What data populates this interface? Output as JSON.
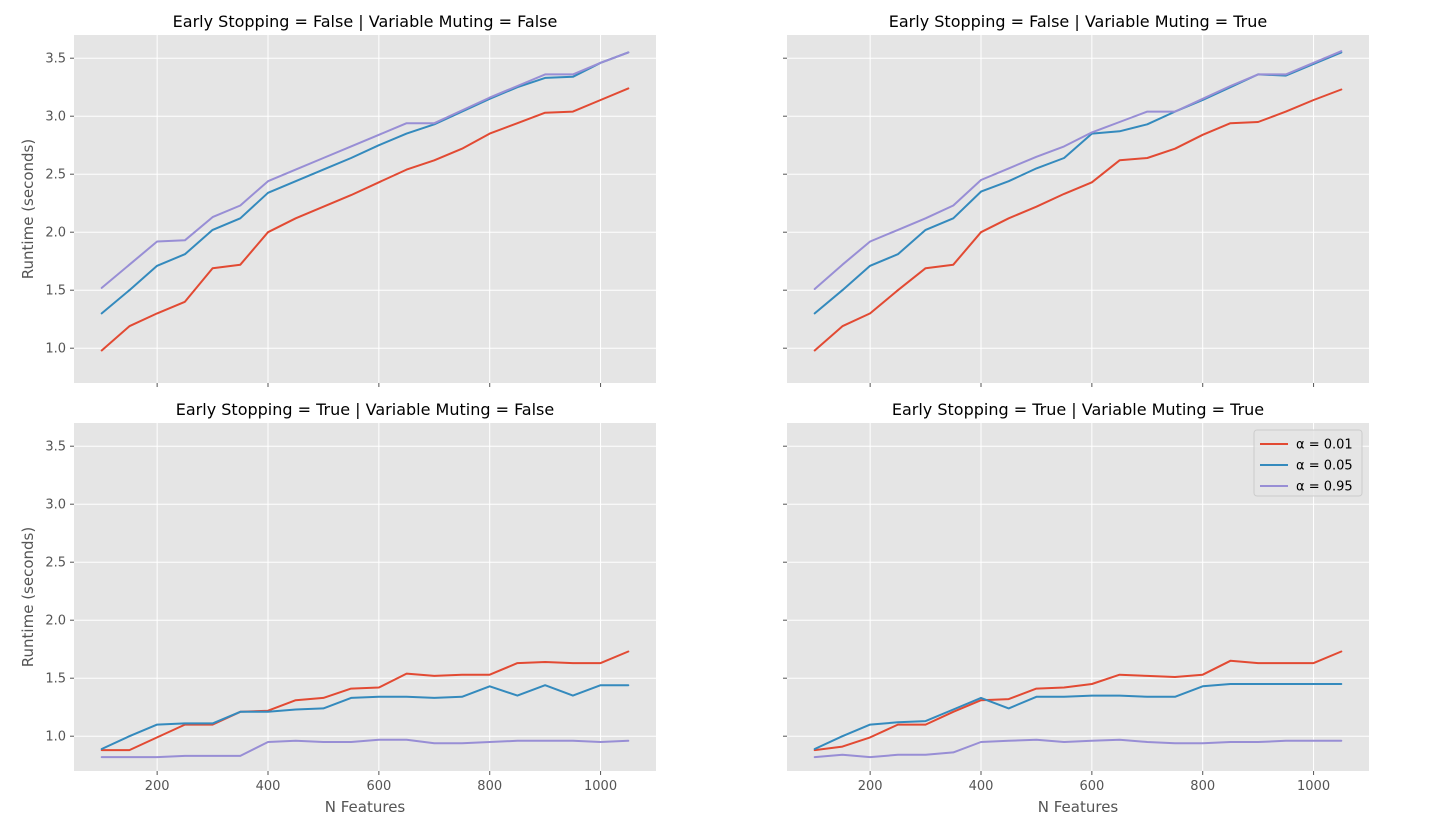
{
  "chart_data": {
    "type": "line",
    "layout": "2x2 facet grid, shared x and y axes",
    "xlabel": "N Features",
    "ylabel": "Runtime (seconds)",
    "xlim": [
      50,
      1100
    ],
    "ylim": [
      0.7,
      3.7
    ],
    "xticks": [
      200,
      400,
      600,
      800,
      1000
    ],
    "yticks": [
      1.0,
      1.5,
      2.0,
      2.5,
      3.0,
      3.5
    ],
    "ytick_labels": [
      "1.0",
      "1.5",
      "2.0",
      "2.5",
      "3.0",
      "3.5"
    ],
    "grid": true,
    "background": "#e5e5e5",
    "legend": {
      "placement": "top-right of bottom-right panel",
      "entries": [
        {
          "label": "α = 0.01",
          "color": "#e24a33"
        },
        {
          "label": "α = 0.05",
          "color": "#348abd"
        },
        {
          "label": "α = 0.95",
          "color": "#988ed5"
        }
      ]
    },
    "x": [
      100,
      150,
      200,
      250,
      300,
      350,
      400,
      450,
      500,
      550,
      600,
      650,
      700,
      750,
      800,
      850,
      900,
      950,
      1000,
      1050
    ],
    "panels": [
      {
        "title": "Early Stopping = False | Variable Muting = False",
        "series": [
          {
            "name": "α = 0.01",
            "values": [
              0.98,
              1.19,
              1.3,
              1.4,
              1.69,
              1.72,
              2.0,
              2.12,
              2.22,
              2.32,
              2.43,
              2.54,
              2.62,
              2.72,
              2.85,
              2.94,
              3.03,
              3.04,
              3.14,
              3.24
            ]
          },
          {
            "name": "α = 0.05",
            "values": [
              1.3,
              1.5,
              1.71,
              1.81,
              2.02,
              2.12,
              2.34,
              2.44,
              2.54,
              2.64,
              2.75,
              2.85,
              2.93,
              3.04,
              3.15,
              3.25,
              3.33,
              3.34,
              3.46,
              3.55
            ]
          },
          {
            "name": "α = 0.95",
            "values": [
              1.52,
              1.72,
              1.92,
              1.93,
              2.13,
              2.23,
              2.44,
              2.54,
              2.64,
              2.74,
              2.84,
              2.94,
              2.94,
              3.05,
              3.16,
              3.26,
              3.36,
              3.36,
              3.46,
              3.55
            ]
          }
        ]
      },
      {
        "title": "Early Stopping = False | Variable Muting = True",
        "series": [
          {
            "name": "α = 0.01",
            "values": [
              0.98,
              1.19,
              1.3,
              1.5,
              1.69,
              1.72,
              2.0,
              2.12,
              2.22,
              2.33,
              2.43,
              2.62,
              2.64,
              2.72,
              2.84,
              2.94,
              2.95,
              3.04,
              3.14,
              3.23
            ]
          },
          {
            "name": "α = 0.05",
            "values": [
              1.3,
              1.5,
              1.71,
              1.81,
              2.02,
              2.12,
              2.35,
              2.44,
              2.55,
              2.64,
              2.85,
              2.87,
              2.93,
              3.04,
              3.14,
              3.25,
              3.36,
              3.35,
              3.45,
              3.55
            ]
          },
          {
            "name": "α = 0.95",
            "values": [
              1.51,
              1.72,
              1.92,
              2.02,
              2.12,
              2.23,
              2.45,
              2.55,
              2.65,
              2.74,
              2.86,
              2.95,
              3.04,
              3.04,
              3.15,
              3.26,
              3.36,
              3.36,
              3.46,
              3.56
            ]
          }
        ]
      },
      {
        "title": "Early Stopping = True | Variable Muting = False",
        "series": [
          {
            "name": "α = 0.01",
            "values": [
              0.88,
              0.88,
              0.99,
              1.1,
              1.1,
              1.21,
              1.22,
              1.31,
              1.33,
              1.41,
              1.42,
              1.54,
              1.52,
              1.53,
              1.53,
              1.63,
              1.64,
              1.63,
              1.63,
              1.73
            ]
          },
          {
            "name": "α = 0.05",
            "values": [
              0.89,
              1.0,
              1.1,
              1.11,
              1.11,
              1.21,
              1.21,
              1.23,
              1.24,
              1.33,
              1.34,
              1.34,
              1.33,
              1.34,
              1.43,
              1.35,
              1.44,
              1.35,
              1.44,
              1.44
            ]
          },
          {
            "name": "α = 0.95",
            "values": [
              0.82,
              0.82,
              0.82,
              0.83,
              0.83,
              0.83,
              0.95,
              0.96,
              0.95,
              0.95,
              0.97,
              0.97,
              0.94,
              0.94,
              0.95,
              0.96,
              0.96,
              0.96,
              0.95,
              0.96
            ]
          }
        ]
      },
      {
        "title": "Early Stopping = True | Variable Muting = True",
        "series": [
          {
            "name": "α = 0.01",
            "values": [
              0.88,
              0.91,
              0.99,
              1.1,
              1.1,
              1.21,
              1.31,
              1.32,
              1.41,
              1.42,
              1.45,
              1.53,
              1.52,
              1.51,
              1.53,
              1.65,
              1.63,
              1.63,
              1.63,
              1.73
            ]
          },
          {
            "name": "α = 0.05",
            "values": [
              0.89,
              1.0,
              1.1,
              1.12,
              1.13,
              1.23,
              1.33,
              1.24,
              1.34,
              1.34,
              1.35,
              1.35,
              1.34,
              1.34,
              1.43,
              1.45,
              1.45,
              1.45,
              1.45,
              1.45
            ]
          },
          {
            "name": "α = 0.95",
            "values": [
              0.82,
              0.84,
              0.82,
              0.84,
              0.84,
              0.86,
              0.95,
              0.96,
              0.97,
              0.95,
              0.96,
              0.97,
              0.95,
              0.94,
              0.94,
              0.95,
              0.95,
              0.96,
              0.96,
              0.96
            ]
          }
        ]
      }
    ]
  }
}
